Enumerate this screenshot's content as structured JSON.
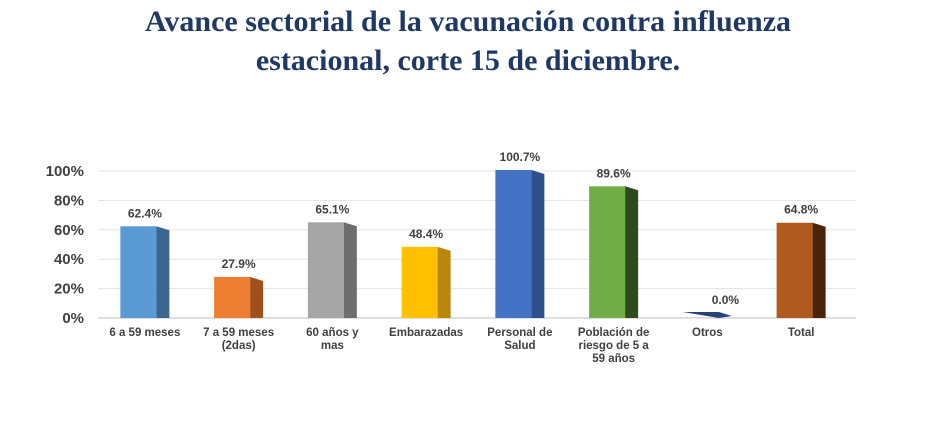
{
  "title": {
    "line1": "Avance sectorial de la vacunación contra influenza",
    "line2": "estacional, corte 15 de diciembre."
  },
  "chart_data": {
    "type": "bar",
    "title": "Avance sectorial de la vacunación contra influenza estacional, corte 15 de diciembre.",
    "xlabel": "",
    "ylabel": "",
    "ylim": [
      0,
      100
    ],
    "y_ticks": [
      "0%",
      "20%",
      "40%",
      "60%",
      "80%",
      "100%"
    ],
    "grid": true,
    "legend": "none",
    "style": "3d-columns",
    "categories": [
      [
        "6 a 59 meses"
      ],
      [
        "7 a 59 meses",
        "(2das)"
      ],
      [
        "60 años y",
        "mas"
      ],
      [
        "Embarazadas"
      ],
      [
        "Personal de",
        "Salud"
      ],
      [
        "Población de",
        "riesgo de 5 a",
        "59 años"
      ],
      [
        "Otros"
      ],
      [
        "Total"
      ]
    ],
    "values": [
      62.4,
      27.9,
      65.1,
      48.4,
      100.7,
      89.6,
      0.0,
      64.8
    ],
    "data_labels": [
      "62.4%",
      "27.9%",
      "65.1%",
      "48.4%",
      "100.7%",
      "89.6%",
      "0.0%",
      "64.8%"
    ],
    "colors": [
      {
        "front": "#5b9bd5",
        "side": "#3a6690"
      },
      {
        "front": "#ed7d31",
        "side": "#a0501c"
      },
      {
        "front": "#a5a5a5",
        "side": "#6e6e6e"
      },
      {
        "front": "#ffc000",
        "side": "#b8860b"
      },
      {
        "front": "#4472c4",
        "side": "#2d4f8c"
      },
      {
        "front": "#70ad47",
        "side": "#2f4a1c"
      },
      {
        "front": "#264478",
        "side": "#1b3157"
      },
      {
        "front": "#b05a1f",
        "side": "#4a2408"
      }
    ]
  }
}
